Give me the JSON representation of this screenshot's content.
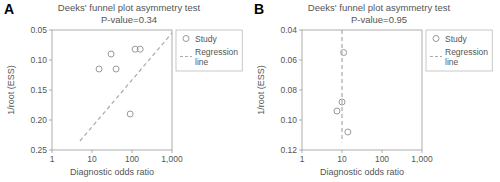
{
  "chart_data": [
    {
      "type": "scatter",
      "title": "Deeks' funnel plot asymmetry test",
      "subtitle": "P-value=0.34",
      "x_label": "Diagnostic odds ratio",
      "y_label": "1/root (ESS)",
      "annotations": [
        "A"
      ],
      "log": "x",
      "xlim": [
        1,
        1000
      ],
      "xticks": [
        1,
        10,
        100,
        {
          "value": 1000,
          "label": "1,000"
        }
      ],
      "ylim": [
        0.25,
        0.05
      ],
      "yticks": [
        0.05,
        {
          "value": 0.1,
          "label": "0.10"
        },
        0.15,
        {
          "value": 0.2,
          "label": "0.20"
        },
        0.25
      ],
      "grid": false,
      "legend": "right",
      "series": [
        {
          "name": "Study",
          "type": "scatter",
          "marker": "circle",
          "color": "#999999",
          "x": [
            15,
            30,
            40,
            90,
            120,
            160
          ],
          "values": [
            0.115,
            0.09,
            0.115,
            0.19,
            0.082,
            0.082
          ]
        },
        {
          "name": "Regression\nline",
          "type": "line",
          "line_style": "dashed",
          "color": "#aaaaaa",
          "x": [
            5,
            1000
          ],
          "values": [
            0.235,
            0.055
          ]
        }
      ]
    },
    {
      "type": "scatter",
      "title": "Deeks' funnel plot asymmetry test",
      "subtitle": "P-value=0.95",
      "x_label": "Diagnostic odds ratio",
      "y_label": "1/root (ESS)",
      "annotations": [
        "B"
      ],
      "log": "x",
      "xlim": [
        1,
        1000
      ],
      "xticks": [
        1,
        10,
        100,
        {
          "value": 1000,
          "label": "1,000"
        }
      ],
      "ylim": [
        0.12,
        0.04
      ],
      "yticks": [
        0.04,
        0.06,
        0.08,
        {
          "value": 0.1,
          "label": "0.10"
        },
        0.12
      ],
      "grid": false,
      "legend": "right",
      "series": [
        {
          "name": "Study",
          "type": "scatter",
          "marker": "circle",
          "color": "#999999",
          "x": [
            7.5,
            10,
            11,
            14
          ],
          "values": [
            0.094,
            0.088,
            0.055,
            0.108
          ]
        },
        {
          "name": "Regression\nline",
          "type": "line",
          "line_style": "dashed",
          "color": "#aaaaaa",
          "x": [
            10,
            10
          ],
          "values": [
            0.04,
            0.115
          ]
        }
      ]
    }
  ]
}
